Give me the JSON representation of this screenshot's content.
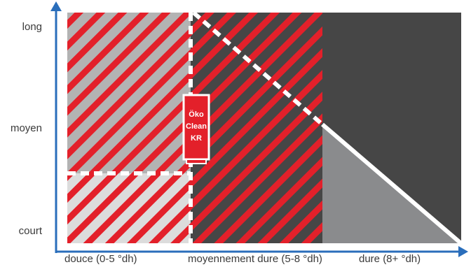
{
  "y_axis": {
    "ticks": [
      "long",
      "moyen",
      "court"
    ]
  },
  "x_axis": {
    "ticks": [
      "douce (0-5 °dh)",
      "moyennement dure (5-8 °dh)",
      "dure (8+ °dh)"
    ]
  },
  "product": {
    "lines": [
      "Öko",
      "Clean",
      "KR"
    ]
  },
  "colors": {
    "axis": "#2a6ebb",
    "dark_region": "#464646",
    "mid_region": "#8a8b8d",
    "light_region": "#b3b3b3",
    "lightest_region": "#dcdcdc",
    "hatch": "#e3202a",
    "divider": "#ffffff"
  }
}
